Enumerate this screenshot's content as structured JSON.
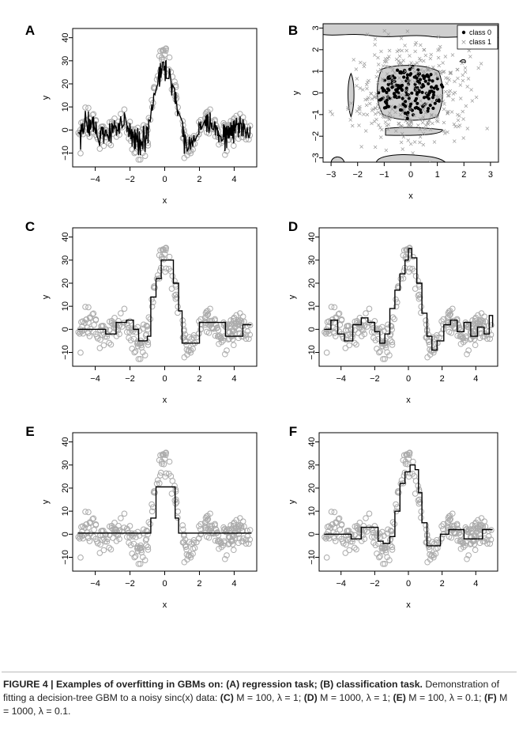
{
  "chart_data": [
    {
      "panel": "A",
      "type": "scatter+line",
      "xlabel": "x",
      "ylabel": "y",
      "xlim": [
        -5.3,
        5.3
      ],
      "ylim": [
        -16,
        44
      ],
      "xticks": [
        "-4",
        "-2",
        "0",
        "2",
        "4"
      ],
      "yticks": [
        "-10",
        "0",
        "10",
        "20",
        "30",
        "40"
      ],
      "points_style": "grey open circles",
      "fit_style": "black line (interpolating, highly overfit)",
      "fit": [
        [
          -5,
          -1
        ],
        [
          -4.6,
          3
        ],
        [
          -4.2,
          -2
        ],
        [
          -3.8,
          4
        ],
        [
          -3.4,
          -6
        ],
        [
          -3,
          3
        ],
        [
          -2.6,
          1
        ],
        [
          -2.2,
          7
        ],
        [
          -1.8,
          0
        ],
        [
          -1.5,
          -9
        ],
        [
          -1.2,
          -1
        ],
        [
          -0.9,
          8
        ],
        [
          -0.6,
          14
        ],
        [
          -0.3,
          28
        ],
        [
          0,
          38
        ],
        [
          0.3,
          29
        ],
        [
          0.6,
          12
        ],
        [
          0.9,
          3
        ],
        [
          1.2,
          -6
        ],
        [
          1.5,
          -12
        ],
        [
          1.8,
          -4
        ],
        [
          2.1,
          1
        ],
        [
          2.4,
          3
        ],
        [
          2.7,
          -4
        ],
        [
          3,
          4
        ],
        [
          3.4,
          -1
        ],
        [
          3.8,
          2
        ],
        [
          4.2,
          -3
        ],
        [
          4.6,
          6
        ],
        [
          5,
          1
        ]
      ],
      "scatter_sample": [
        [
          -4.8,
          -3
        ],
        [
          -4.5,
          5
        ],
        [
          -4.2,
          -1
        ],
        [
          -3.9,
          4
        ],
        [
          -3.6,
          -5
        ],
        [
          -3.3,
          2
        ],
        [
          -3,
          -8
        ],
        [
          -2.7,
          3
        ],
        [
          -2.4,
          6
        ],
        [
          -2.1,
          9
        ],
        [
          -1.8,
          -2
        ],
        [
          -1.5,
          -11
        ],
        [
          -1.2,
          -4
        ],
        [
          -0.9,
          6
        ],
        [
          -0.6,
          17
        ],
        [
          -0.4,
          26
        ],
        [
          -0.2,
          31
        ],
        [
          0,
          41
        ],
        [
          0.2,
          33
        ],
        [
          0.4,
          22
        ],
        [
          0.6,
          10
        ],
        [
          0.9,
          -1
        ],
        [
          1.2,
          -8
        ],
        [
          1.5,
          -12
        ],
        [
          1.8,
          -6
        ],
        [
          2.1,
          2
        ],
        [
          2.4,
          5
        ],
        [
          2.8,
          -3
        ],
        [
          3.1,
          6
        ],
        [
          3.5,
          -2
        ],
        [
          3.9,
          2
        ],
        [
          4.3,
          -4
        ],
        [
          4.6,
          8
        ],
        [
          4.9,
          4
        ]
      ]
    },
    {
      "panel": "B",
      "type": "scatter+decision-regions",
      "xlabel": "x",
      "ylabel": "y",
      "xlim": [
        -3.3,
        3.3
      ],
      "ylim": [
        -3.2,
        3.2
      ],
      "xticks": [
        "-3",
        "-2",
        "-1",
        "0",
        "1",
        "2",
        "3"
      ],
      "yticks": [
        "-3",
        "-2",
        "-1",
        "0",
        "1",
        "2",
        "3"
      ],
      "legend": [
        {
          "name": "class 0",
          "marker": "filled circle"
        },
        {
          "name": "class 1",
          "marker": "x"
        }
      ],
      "legend_position": "top-right",
      "regions_class0_grey": "central blob approx x∈[-1.2,1.2], y∈[-1.2,1.2]; top band y>2.6; bottom bands near y≈-1.8 and y≈-3"
    },
    {
      "panel": "C",
      "type": "scatter+step",
      "xlabel": "x",
      "ylabel": "y",
      "xlim": [
        -5.3,
        5.3
      ],
      "ylim": [
        -16,
        44
      ],
      "xticks": [
        "-4",
        "-2",
        "0",
        "2",
        "4"
      ],
      "yticks": [
        "-10",
        "0",
        "10",
        "20",
        "30",
        "40"
      ],
      "fit": [
        [
          -5,
          0
        ],
        [
          -4,
          0
        ],
        [
          -3.4,
          -2
        ],
        [
          -2.8,
          3
        ],
        [
          -2.2,
          4
        ],
        [
          -1.8,
          0
        ],
        [
          -1.5,
          -5
        ],
        [
          -1,
          -3
        ],
        [
          -0.8,
          14
        ],
        [
          -0.5,
          22
        ],
        [
          -0.2,
          30
        ],
        [
          0.3,
          30
        ],
        [
          0.5,
          20
        ],
        [
          0.8,
          8
        ],
        [
          1,
          -6
        ],
        [
          1.5,
          -6
        ],
        [
          2,
          3
        ],
        [
          3,
          3
        ],
        [
          3.5,
          -3
        ],
        [
          4,
          -3
        ],
        [
          4.5,
          2
        ],
        [
          5,
          2
        ]
      ]
    },
    {
      "panel": "D",
      "type": "scatter+step",
      "xlabel": "x",
      "ylabel": "y",
      "xlim": [
        -5.3,
        5.3
      ],
      "ylim": [
        -16,
        44
      ],
      "xticks": [
        "-4",
        "-2",
        "0",
        "2",
        "4"
      ],
      "yticks": [
        "-10",
        "0",
        "10",
        "20",
        "30",
        "40"
      ],
      "fit": [
        [
          -5,
          0
        ],
        [
          -4.6,
          4
        ],
        [
          -4.2,
          -2
        ],
        [
          -3.8,
          -5
        ],
        [
          -3.3,
          2
        ],
        [
          -2.8,
          5
        ],
        [
          -2.4,
          3
        ],
        [
          -2,
          -1
        ],
        [
          -1.7,
          -6
        ],
        [
          -1.4,
          -2
        ],
        [
          -1.1,
          9
        ],
        [
          -0.8,
          17
        ],
        [
          -0.5,
          24
        ],
        [
          -0.2,
          30
        ],
        [
          0,
          35
        ],
        [
          0.2,
          31
        ],
        [
          0.5,
          20
        ],
        [
          0.8,
          7
        ],
        [
          1.1,
          -3
        ],
        [
          1.4,
          -9
        ],
        [
          1.7,
          -5
        ],
        [
          2.1,
          2
        ],
        [
          2.5,
          4
        ],
        [
          2.9,
          -1
        ],
        [
          3.3,
          3
        ],
        [
          3.7,
          -3
        ],
        [
          4.1,
          1
        ],
        [
          4.5,
          -2
        ],
        [
          4.8,
          6
        ],
        [
          5,
          1
        ]
      ]
    },
    {
      "panel": "E",
      "type": "scatter+step",
      "xlabel": "x",
      "ylabel": "y",
      "xlim": [
        -5.3,
        5.3
      ],
      "ylim": [
        -16,
        44
      ],
      "xticks": [
        "-4",
        "-2",
        "0",
        "2",
        "4"
      ],
      "yticks": [
        "-10",
        "0",
        "10",
        "20",
        "30",
        "40"
      ],
      "fit": [
        [
          -5,
          0.5
        ],
        [
          -0.9,
          0.5
        ],
        [
          -0.8,
          7
        ],
        [
          -0.5,
          20.5
        ],
        [
          0.4,
          20.5
        ],
        [
          0.6,
          7
        ],
        [
          0.8,
          0.5
        ],
        [
          5,
          0.5
        ]
      ]
    },
    {
      "panel": "F",
      "type": "scatter+step",
      "xlabel": "x",
      "ylabel": "y",
      "xlim": [
        -5.3,
        5.3
      ],
      "ylim": [
        -16,
        44
      ],
      "xticks": [
        "-4",
        "-2",
        "0",
        "2",
        "4"
      ],
      "yticks": [
        "-10",
        "0",
        "10",
        "20",
        "30",
        "40"
      ],
      "fit": [
        [
          -5,
          0
        ],
        [
          -4,
          0
        ],
        [
          -3.4,
          -2
        ],
        [
          -2.8,
          3
        ],
        [
          -2.2,
          3
        ],
        [
          -1.8,
          -3
        ],
        [
          -1.5,
          -4
        ],
        [
          -1.1,
          -1
        ],
        [
          -0.8,
          10
        ],
        [
          -0.5,
          22
        ],
        [
          -0.2,
          27
        ],
        [
          0.1,
          30
        ],
        [
          0.4,
          28
        ],
        [
          0.6,
          18
        ],
        [
          0.8,
          5
        ],
        [
          1.1,
          -5
        ],
        [
          1.5,
          -5
        ],
        [
          1.9,
          0
        ],
        [
          2.4,
          2
        ],
        [
          3,
          2
        ],
        [
          3.3,
          -2
        ],
        [
          4,
          -2
        ],
        [
          4.4,
          2
        ],
        [
          5,
          2
        ]
      ]
    }
  ],
  "caption": {
    "prefix": "FIGURE 4 | Examples of overfitting in GBMs on: (A) regression task; (B) classification task.",
    "body": " Demonstration of fitting a decision-tree GBM to a noisy sinc(x) data: ",
    "C_label": "(C)",
    "C_text": " M = 100, λ = 1; ",
    "D_label": "(D)",
    "D_text": " M = 1000, λ = 1; ",
    "E_label": "(E)",
    "E_text": " M = 100, λ = 0.1; ",
    "F_label": "(F)",
    "F_text": " M = 1000, λ = 0.1."
  }
}
